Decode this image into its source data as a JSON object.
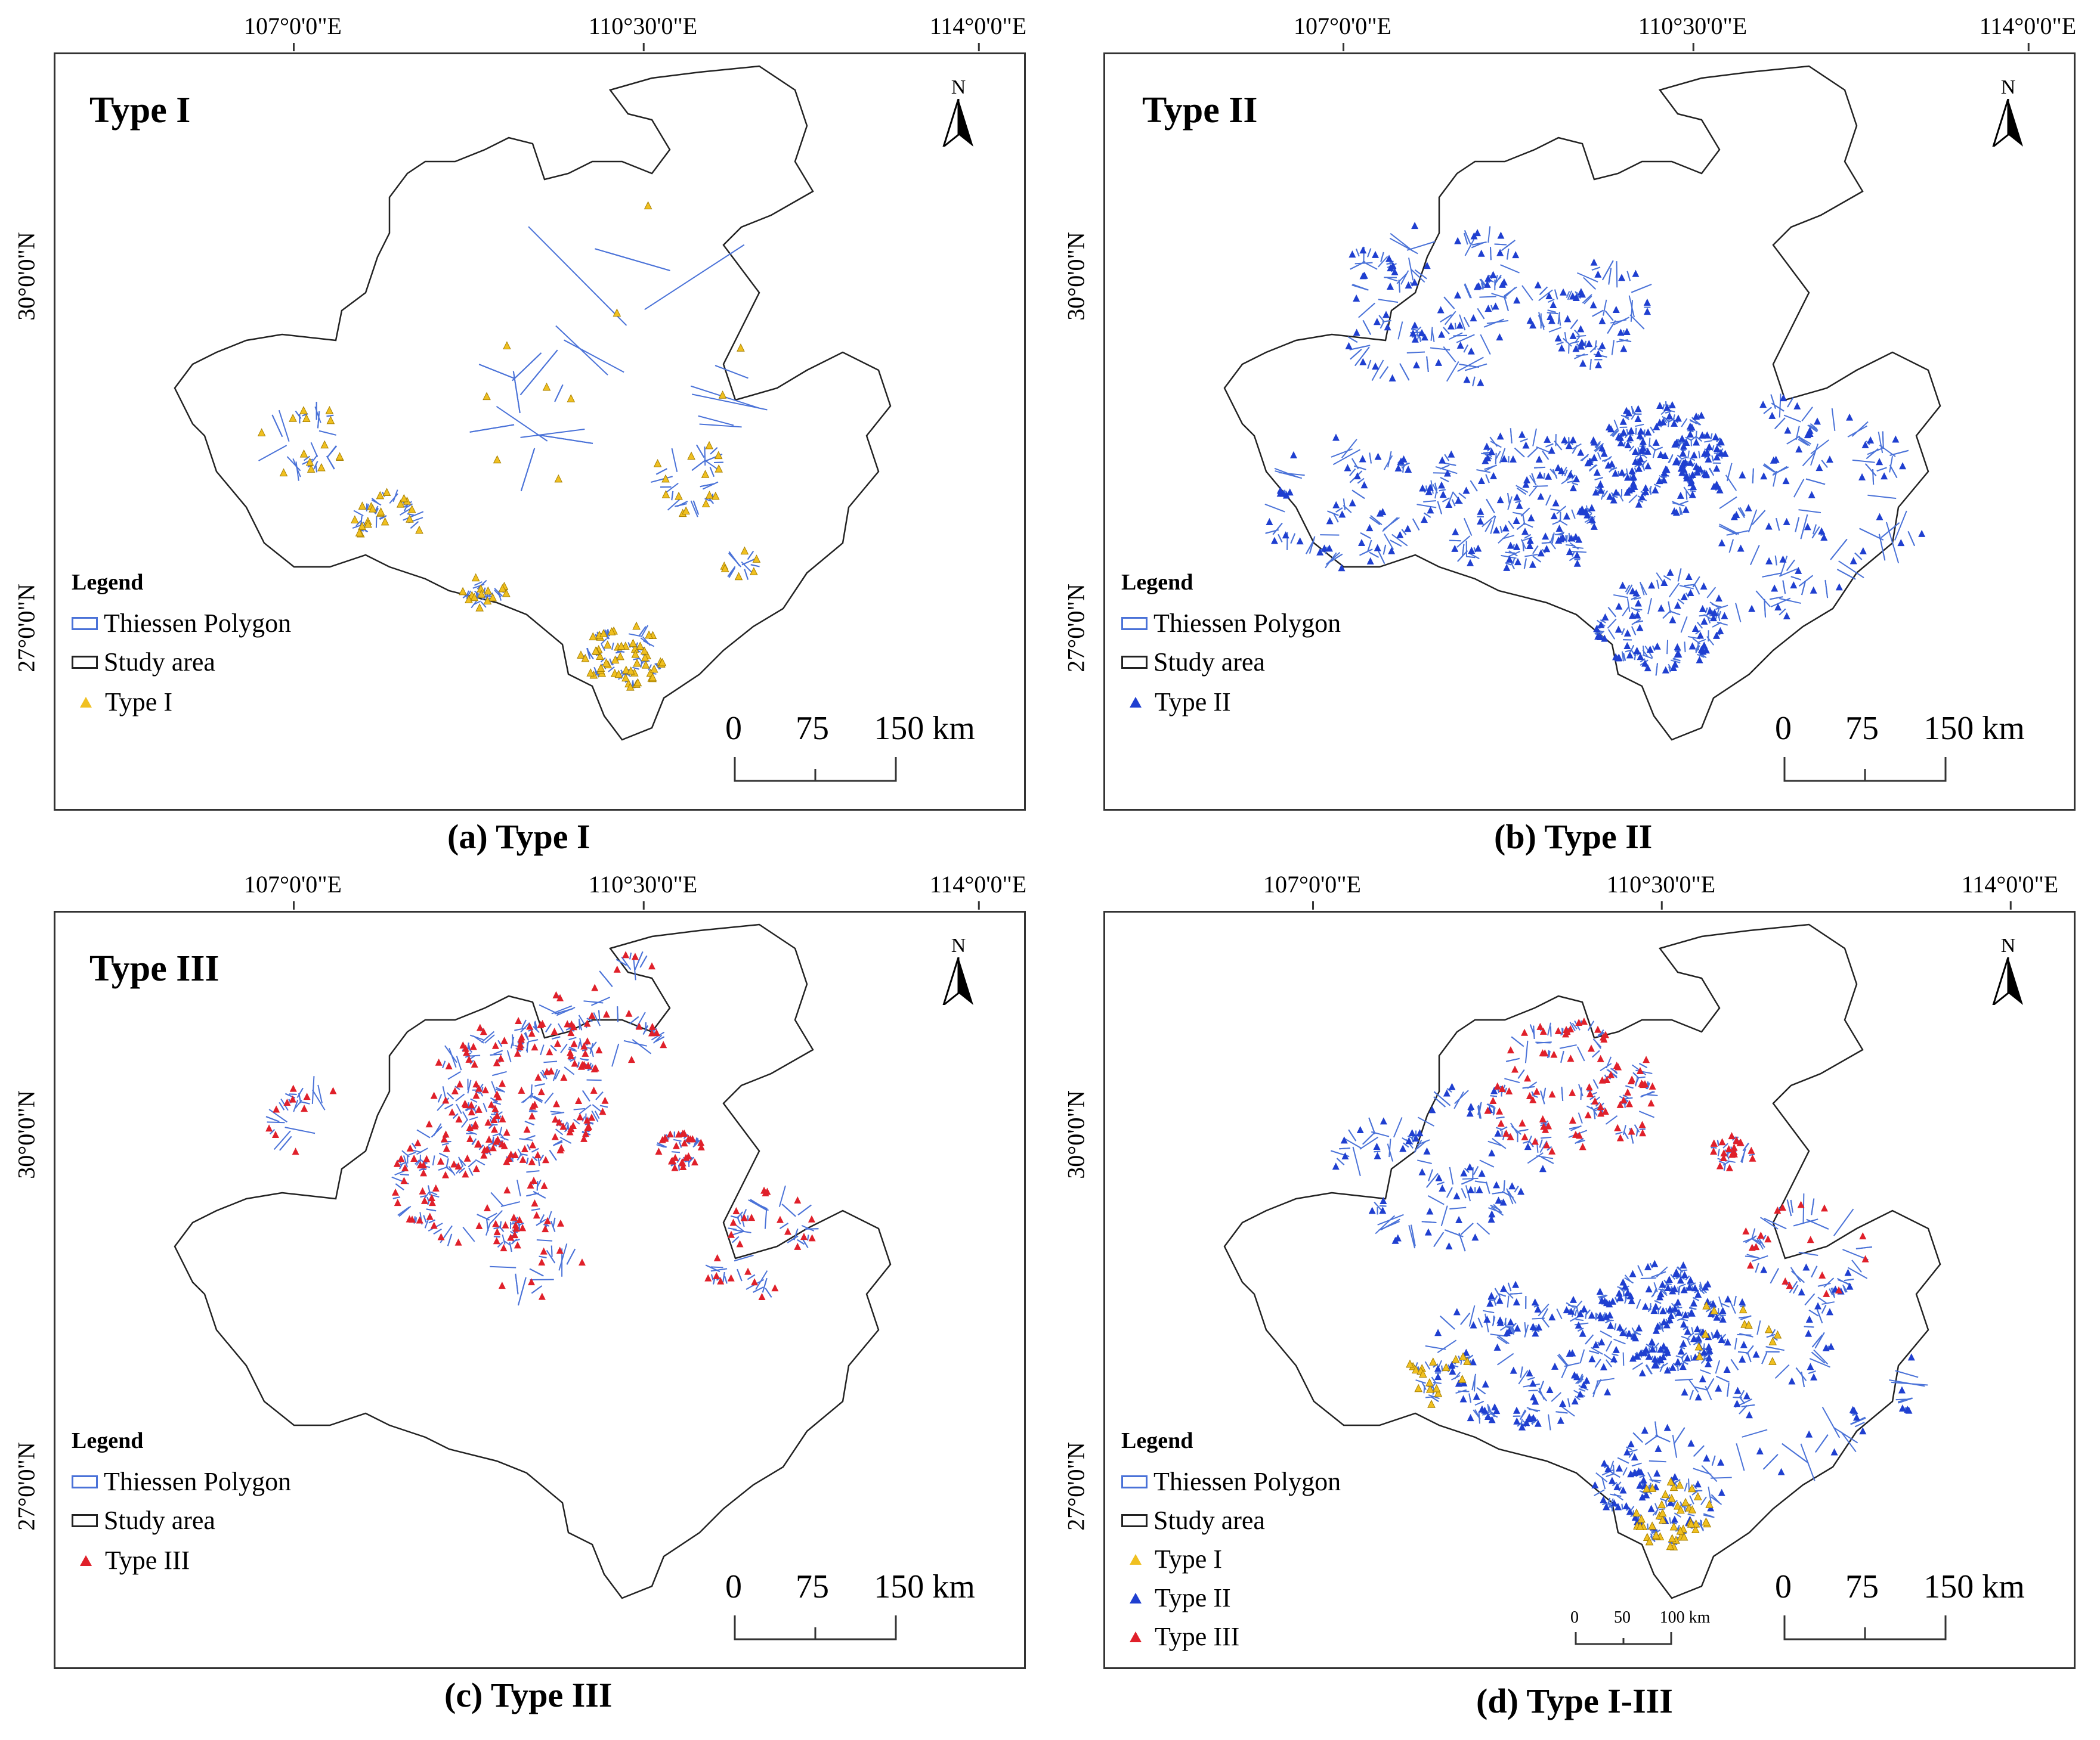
{
  "panels": [
    {
      "id": "a",
      "title": "Type I",
      "caption_letter": "(a)",
      "caption_text": "Type I",
      "lon_ticks": [
        "107°0'0\"E",
        "110°30'0\"E",
        "114°0'0\"E"
      ],
      "lat_ticks": [
        "30°0'0\"N",
        "27°0'0\"N"
      ],
      "north": "N",
      "legend": {
        "title": "Legend",
        "polygon": "Thiessen Polygon",
        "study": "Study area",
        "points": [
          "Type I"
        ]
      },
      "scale": {
        "zero": "0",
        "mid": "75",
        "end": "150 km"
      }
    },
    {
      "id": "b",
      "title": "Type II",
      "caption_letter": "(b)",
      "caption_text": "Type II",
      "lon_ticks": [
        "107°0'0\"E",
        "110°30'0\"E",
        "114°0'0\"E"
      ],
      "lat_ticks": [
        "30°0'0\"N",
        "27°0'0\"N"
      ],
      "north": "N",
      "legend": {
        "title": "Legend",
        "polygon": "Thiessen Polygon",
        "study": "Study area",
        "points": [
          "Type II"
        ]
      },
      "scale": {
        "zero": "0",
        "mid": "75",
        "end": "150 km"
      }
    },
    {
      "id": "c",
      "title": "Type III",
      "caption_letter": "(c)",
      "caption_text": "Type III",
      "lon_ticks": [
        "107°0'0\"E",
        "110°30'0\"E",
        "114°0'0\"E"
      ],
      "lat_ticks": [
        "30°0'0\"N",
        "27°0'0\"N"
      ],
      "north": "N",
      "legend": {
        "title": "Legend",
        "polygon": "Thiessen Polygon",
        "study": "Study area",
        "points": [
          "Type III"
        ]
      },
      "scale": {
        "zero": "0",
        "mid": "75",
        "end": "150 km"
      }
    },
    {
      "id": "d",
      "title": "",
      "caption_letter": "(d)",
      "caption_text": "Type I-III",
      "lon_ticks": [
        "107°0'0\"E",
        "110°30'0\"E",
        "114°0'0\"E"
      ],
      "lat_ticks": [
        "30°0'0\"N",
        "27°0'0\"N"
      ],
      "north": "N",
      "legend": {
        "title": "Legend",
        "polygon": "Thiessen Polygon",
        "study": "Study area",
        "points": [
          "Type I",
          "Type II",
          "Type III"
        ]
      },
      "scale": {
        "zero": "0",
        "mid": "75",
        "end": "150 km"
      },
      "inset_scale": {
        "zero": "0",
        "mid": "50",
        "end": "100 km"
      }
    }
  ],
  "colors": {
    "type_i": "#f0c020",
    "type_ii": "#1f3fd0",
    "type_iii": "#e0202a",
    "polygon": "#4a72d8",
    "boundary": "#222222"
  }
}
